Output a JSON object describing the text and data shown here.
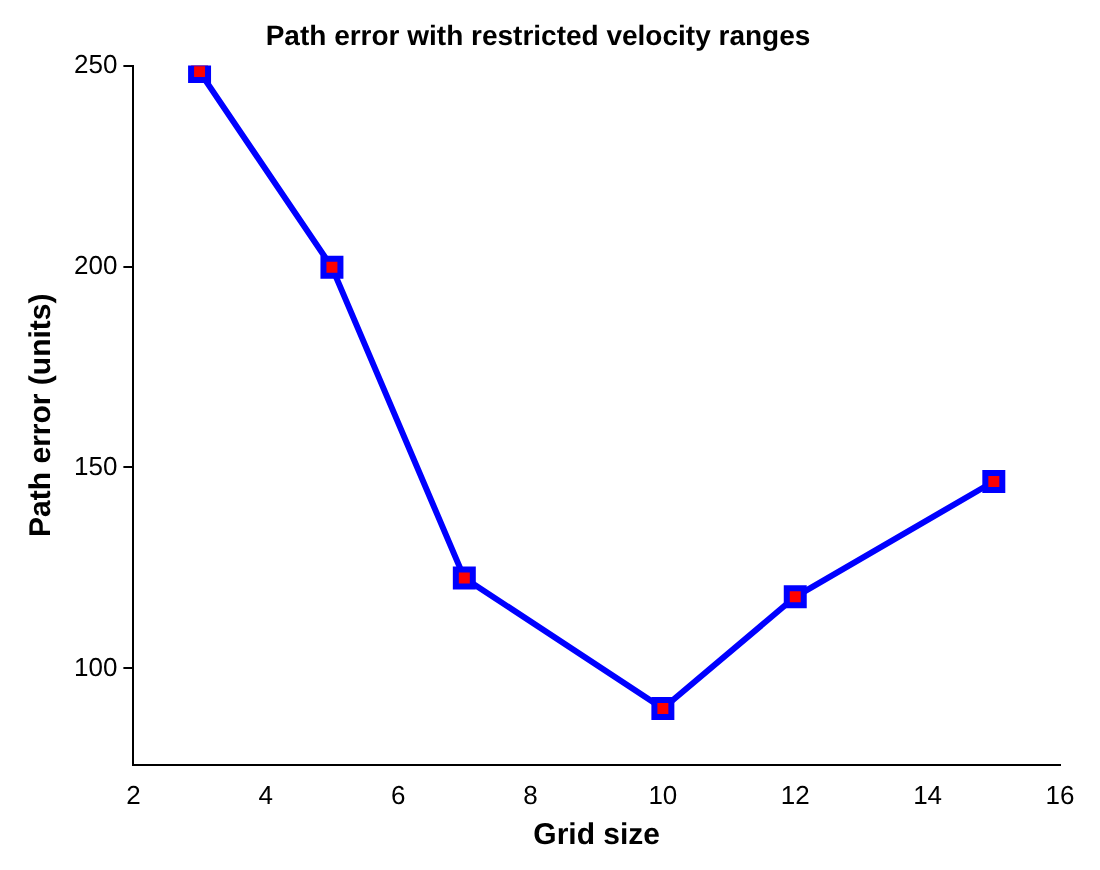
{
  "chart_data": {
    "type": "line",
    "title": "Path error with restricted velocity ranges",
    "xlabel": "Grid size",
    "ylabel": "Path error (units)",
    "x": [
      3,
      5,
      7,
      10,
      12,
      15
    ],
    "series": [
      {
        "color": "#0000ff",
        "values": [
          248.5,
          199.8,
          122.5,
          90,
          117.8,
          146.5
        ]
      }
    ],
    "xlim": [
      2,
      16
    ],
    "xticks": [
      2,
      4,
      6,
      8,
      10,
      12,
      14,
      16
    ],
    "ylim": [
      76,
      250
    ],
    "yticks": [
      100,
      150,
      200,
      250
    ],
    "grid": false,
    "legend": false,
    "marker": "square",
    "line_style": "solid"
  }
}
